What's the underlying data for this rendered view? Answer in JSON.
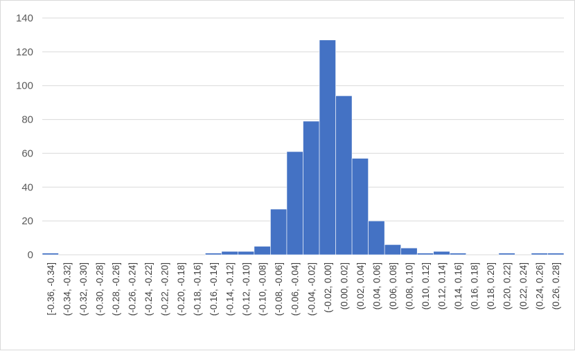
{
  "chart_data": {
    "type": "bar",
    "title": "",
    "xlabel": "",
    "ylabel": "",
    "ylim": [
      0,
      140
    ],
    "yticks": [
      0,
      20,
      40,
      60,
      80,
      100,
      120,
      140
    ],
    "grid": true,
    "legend": "none",
    "bar_color": "#4472c4",
    "categories": [
      "[-0.36, -0.34]",
      "(-0.34, -0.32]",
      "(-0.32, -0.30]",
      "(-0.30, -0.28]",
      "(-0.28, -0.26]",
      "(-0.26, -0.24]",
      "(-0.24, -0.22]",
      "(-0.22, -0.20]",
      "(-0.20, -0.18]",
      "(-0.18, -0.16]",
      "(-0.16, -0.14]",
      "(-0.14, -0.12]",
      "(-0.12, -0.10]",
      "(-0.10, -0.08]",
      "(-0.08, -0.06]",
      "(-0.06, -0.04]",
      "(-0.04, -0.02]",
      "(-0.02, 0.00]",
      "(0.00, 0.02]",
      "(0.02, 0.04]",
      "(0.04, 0.06]",
      "(0.06, 0.08]",
      "(0.08, 0.10]",
      "(0.10, 0.12]",
      "(0.12, 0.14]",
      "(0.14, 0.16]",
      "(0.16, 0.18]",
      "(0.18, 0.20]",
      "(0.20, 0.22]",
      "(0.22, 0.24]",
      "(0.24, 0.26]",
      "(0.26, 0.28]"
    ],
    "values": [
      1,
      0,
      0,
      0,
      0,
      0,
      0,
      0,
      0,
      0,
      1,
      2,
      2,
      5,
      27,
      61,
      79,
      127,
      94,
      57,
      20,
      6,
      4,
      1,
      2,
      1,
      0,
      0,
      1,
      0,
      1,
      1
    ]
  }
}
